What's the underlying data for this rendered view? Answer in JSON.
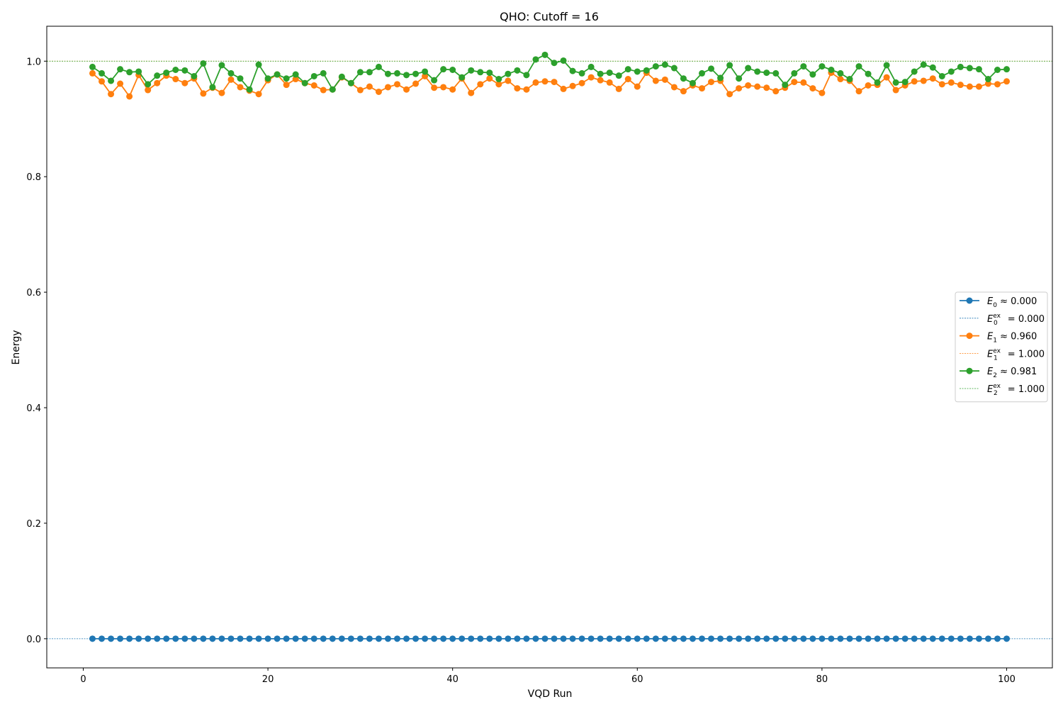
{
  "chart_data": {
    "type": "line",
    "title": "QHO: Cutoff = 16",
    "xlabel": "VQD Run",
    "ylabel": "Energy",
    "xlim": [
      -3.95,
      104.95
    ],
    "ylim": [
      -0.0505,
      1.0605
    ],
    "xticks": [
      0,
      20,
      40,
      60,
      80,
      100
    ],
    "xtick_labels": [
      "0",
      "20",
      "40",
      "60",
      "80",
      "100"
    ],
    "yticks": [
      0.0,
      0.2,
      0.4,
      0.6,
      0.8,
      1.0
    ],
    "ytick_labels": [
      "0.0",
      "0.2",
      "0.4",
      "0.6",
      "0.8",
      "1.0"
    ],
    "grid": false,
    "legend_position": "center-right",
    "x": [
      1,
      2,
      3,
      4,
      5,
      6,
      7,
      8,
      9,
      10,
      11,
      12,
      13,
      14,
      15,
      16,
      17,
      18,
      19,
      20,
      21,
      22,
      23,
      24,
      25,
      26,
      27,
      28,
      29,
      30,
      31,
      32,
      33,
      34,
      35,
      36,
      37,
      38,
      39,
      40,
      41,
      42,
      43,
      44,
      45,
      46,
      47,
      48,
      49,
      50,
      51,
      52,
      53,
      54,
      55,
      56,
      57,
      58,
      59,
      60,
      61,
      62,
      63,
      64,
      65,
      66,
      67,
      68,
      69,
      70,
      71,
      72,
      73,
      74,
      75,
      76,
      77,
      78,
      79,
      80,
      81,
      82,
      83,
      84,
      85,
      86,
      87,
      88,
      89,
      90,
      91,
      92,
      93,
      94,
      95,
      96,
      97,
      98,
      99,
      100
    ],
    "series": [
      {
        "name": "E0",
        "legend_value": "≈ 0.000",
        "color": "#1f77b4",
        "values": [
          0,
          0,
          0,
          0,
          0,
          0,
          0,
          0,
          0,
          0,
          0,
          0,
          0,
          0,
          0,
          0,
          0,
          0,
          0,
          0,
          0,
          0,
          0,
          0,
          0,
          0,
          0,
          0,
          0,
          0,
          0,
          0,
          0,
          0,
          0,
          0,
          0,
          0,
          0,
          0,
          0,
          0,
          0,
          0,
          0,
          0,
          0,
          0,
          0,
          0,
          0,
          0,
          0,
          0,
          0,
          0,
          0,
          0,
          0,
          0,
          0,
          0,
          0,
          0,
          0,
          0,
          0,
          0,
          0,
          0,
          0,
          0,
          0,
          0,
          0,
          0,
          0,
          0,
          0,
          0,
          0,
          0,
          0,
          0,
          0,
          0,
          0,
          0,
          0,
          0,
          0,
          0,
          0,
          0,
          0,
          0,
          0,
          0,
          0,
          0
        ]
      },
      {
        "name": "E1",
        "legend_value": "≈ 0.960",
        "color": "#ff7f0e",
        "values": [
          0.979,
          0.965,
          0.943,
          0.961,
          0.939,
          0.976,
          0.95,
          0.962,
          0.975,
          0.969,
          0.962,
          0.97,
          0.944,
          0.954,
          0.945,
          0.968,
          0.955,
          0.949,
          0.943,
          0.967,
          0.977,
          0.959,
          0.969,
          0.962,
          0.958,
          0.95,
          0.951,
          0.972,
          0.962,
          0.95,
          0.956,
          0.947,
          0.955,
          0.96,
          0.951,
          0.961,
          0.974,
          0.954,
          0.955,
          0.951,
          0.97,
          0.945,
          0.96,
          0.97,
          0.96,
          0.966,
          0.953,
          0.951,
          0.963,
          0.965,
          0.964,
          0.952,
          0.957,
          0.962,
          0.972,
          0.967,
          0.963,
          0.952,
          0.969,
          0.956,
          0.98,
          0.966,
          0.968,
          0.955,
          0.948,
          0.958,
          0.953,
          0.964,
          0.966,
          0.943,
          0.953,
          0.958,
          0.956,
          0.954,
          0.948,
          0.954,
          0.964,
          0.963,
          0.953,
          0.945,
          0.98,
          0.969,
          0.966,
          0.948,
          0.958,
          0.959,
          0.972,
          0.95,
          0.958,
          0.965,
          0.966,
          0.97,
          0.96,
          0.963,
          0.959,
          0.956,
          0.956,
          0.961,
          0.96,
          0.965
        ]
      },
      {
        "name": "E2",
        "legend_value": "≈ 0.981",
        "color": "#2ca02c",
        "values": [
          0.99,
          0.979,
          0.966,
          0.986,
          0.981,
          0.982,
          0.96,
          0.975,
          0.98,
          0.985,
          0.984,
          0.974,
          0.996,
          0.955,
          0.993,
          0.979,
          0.97,
          0.951,
          0.994,
          0.97,
          0.977,
          0.97,
          0.977,
          0.962,
          0.974,
          0.979,
          0.951,
          0.973,
          0.962,
          0.981,
          0.981,
          0.99,
          0.978,
          0.979,
          0.976,
          0.978,
          0.982,
          0.967,
          0.986,
          0.985,
          0.972,
          0.984,
          0.981,
          0.98,
          0.969,
          0.978,
          0.984,
          0.976,
          1.003,
          1.011,
          0.997,
          1.001,
          0.983,
          0.979,
          0.99,
          0.978,
          0.98,
          0.975,
          0.986,
          0.982,
          0.984,
          0.991,
          0.994,
          0.988,
          0.97,
          0.962,
          0.979,
          0.987,
          0.971,
          0.993,
          0.97,
          0.988,
          0.982,
          0.98,
          0.979,
          0.959,
          0.979,
          0.991,
          0.977,
          0.991,
          0.985,
          0.979,
          0.969,
          0.991,
          0.978,
          0.963,
          0.993,
          0.963,
          0.964,
          0.982,
          0.994,
          0.989,
          0.974,
          0.982,
          0.99,
          0.988,
          0.986,
          0.969,
          0.985,
          0.986
        ]
      }
    ],
    "reference_lines": [
      {
        "name": "E0",
        "sup": "ex",
        "legend_value": "= 0.000",
        "value": 0.0,
        "color": "#1f77b4"
      },
      {
        "name": "E1",
        "sup": "ex",
        "legend_value": "= 1.000",
        "value": 1.0,
        "color": "#ff7f0e"
      },
      {
        "name": "E2",
        "sup": "ex",
        "legend_value": "= 1.000",
        "value": 1.0,
        "color": "#2ca02c"
      }
    ]
  }
}
